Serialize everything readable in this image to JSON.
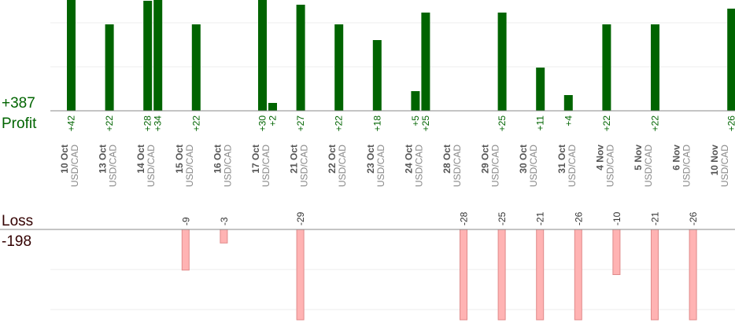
{
  "summary": {
    "profit_total": "+387",
    "profit_label": "Profit",
    "loss_label": "Loss",
    "loss_total": "-198"
  },
  "colors": {
    "profit_bar": "#006400",
    "profit_text": "#006400",
    "loss_bar": "#ffb3b3",
    "loss_bar_stroke": "#e08a8a",
    "loss_text": "#330000",
    "gridline": "#eeeeee",
    "axis": "#888888",
    "date_text": "#555555",
    "pair_text": "#888888"
  },
  "chart_data": {
    "type": "bar",
    "pair": "USD/CAD",
    "dates": [
      "10 Oct",
      "13 Oct",
      "14 Oct",
      "15 Oct",
      "16 Oct",
      "17 Oct",
      "21 Oct",
      "22 Oct",
      "23 Oct",
      "24 Oct",
      "28 Oct",
      "29 Oct",
      "30 Oct",
      "31 Oct",
      "4 Nov",
      "5 Nov",
      "6 Nov",
      "10 Nov"
    ],
    "profit_bars": [
      {
        "day": 0,
        "slot": 0,
        "value": 42,
        "label": "+42"
      },
      {
        "day": 1,
        "slot": 0,
        "value": 22,
        "label": "+22"
      },
      {
        "day": 2,
        "slot": 0,
        "value": 28,
        "label": "+28"
      },
      {
        "day": 2,
        "slot": 1,
        "value": 34,
        "label": "+34"
      },
      {
        "day": 3,
        "slot": 1,
        "value": 22,
        "label": "+22"
      },
      {
        "day": 5,
        "slot": 0,
        "value": 30,
        "label": "+30"
      },
      {
        "day": 5,
        "slot": 1,
        "value": 2,
        "label": "+2"
      },
      {
        "day": 6,
        "slot": 0,
        "value": 27,
        "label": "+27"
      },
      {
        "day": 7,
        "slot": 0,
        "value": 22,
        "label": "+22"
      },
      {
        "day": 8,
        "slot": 0,
        "value": 18,
        "label": "+18"
      },
      {
        "day": 9,
        "slot": 0,
        "value": 5,
        "label": "+5"
      },
      {
        "day": 9,
        "slot": 1,
        "value": 25,
        "label": "+25"
      },
      {
        "day": 11,
        "slot": 1,
        "value": 25,
        "label": "+25"
      },
      {
        "day": 12,
        "slot": 1,
        "value": 11,
        "label": "+11"
      },
      {
        "day": 13,
        "slot": 0,
        "value": 4,
        "label": "+4"
      },
      {
        "day": 14,
        "slot": 0,
        "value": 22,
        "label": "+22"
      },
      {
        "day": 15,
        "slot": 1,
        "value": 22,
        "label": "+22"
      },
      {
        "day": 17,
        "slot": 1,
        "value": 26,
        "label": "+26"
      }
    ],
    "loss_bars": [
      {
        "day": 3,
        "slot": 0,
        "value": -9,
        "label": "-9"
      },
      {
        "day": 4,
        "slot": 0,
        "value": -3,
        "label": "-3"
      },
      {
        "day": 6,
        "slot": 0,
        "value": -29,
        "label": "-29"
      },
      {
        "day": 10,
        "slot": 1,
        "value": -28,
        "label": "-28"
      },
      {
        "day": 11,
        "slot": 1,
        "value": -25,
        "label": "-25"
      },
      {
        "day": 12,
        "slot": 1,
        "value": -21,
        "label": "-21"
      },
      {
        "day": 13,
        "slot": 1,
        "value": -26,
        "label": "-26"
      },
      {
        "day": 14,
        "slot": 1,
        "value": -10,
        "label": "-10"
      },
      {
        "day": 15,
        "slot": 1,
        "value": -21,
        "label": "-21"
      },
      {
        "day": 16,
        "slot": 1,
        "value": -26,
        "label": "-26"
      }
    ],
    "profit_scale_max": 25,
    "loss_scale_max": 20,
    "grid": true
  }
}
